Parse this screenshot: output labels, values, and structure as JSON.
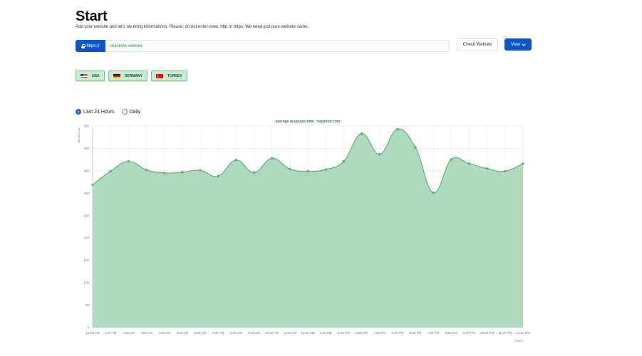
{
  "header": {
    "title": "Start",
    "subtitle": "Add your website and let's we bring informations. Please, do not enter www, http or https. We need just pure website name."
  },
  "url_bar": {
    "protocol_label": "https://",
    "input_value": "checkthe.website"
  },
  "actions": {
    "check_label": "Check Website",
    "view_label": "View"
  },
  "countries": [
    {
      "label": "USA",
      "flag": "usa-flag-icon"
    },
    {
      "label": "GERMANY",
      "flag": "germany-flag-icon"
    },
    {
      "label": "TURKEY",
      "flag": "turkey-flag-icon"
    }
  ],
  "range": {
    "options": [
      "Last 24 Hours",
      "Daily"
    ],
    "selected": "Last 24 Hours"
  },
  "colors": {
    "primary": "#0d56c9",
    "area_fill": "#aedabd",
    "line": "#5fb27c",
    "title_green": "#2e7d32"
  },
  "chart_data": {
    "type": "area",
    "title": "average response time : kayafirat.com",
    "ylabel": "Milliseconds",
    "xlabel": "Hours",
    "ylim": [
      0,
      450
    ],
    "yticks": [
      0,
      50,
      100,
      150,
      200,
      250,
      300,
      350,
      400,
      450
    ],
    "x": [
      "12:00 AM",
      "1:00 AM",
      "2:00 AM",
      "3:00 AM",
      "4:00 AM",
      "5:00 AM",
      "6:00 AM",
      "7:00 AM",
      "8:00 AM",
      "9:00 AM",
      "10:00 AM",
      "11:00 AM",
      "12:00 PM",
      "1:00 PM",
      "2:00 PM",
      "3:00 PM",
      "4:00 PM",
      "5:00 PM",
      "6:00 PM",
      "7:00 PM",
      "8:00 PM",
      "9:00 PM",
      "10:00 PM",
      "11:00 PM",
      "12:00 PM"
    ],
    "series": [
      {
        "values": [
          319,
          349,
          371,
          352,
          345,
          347,
          351,
          338,
          374,
          346,
          378,
          354,
          349,
          353,
          371,
          433,
          387,
          443,
          402,
          301,
          375,
          366,
          355,
          349,
          366
        ]
      }
    ],
    "grid": true,
    "legend": "none"
  }
}
